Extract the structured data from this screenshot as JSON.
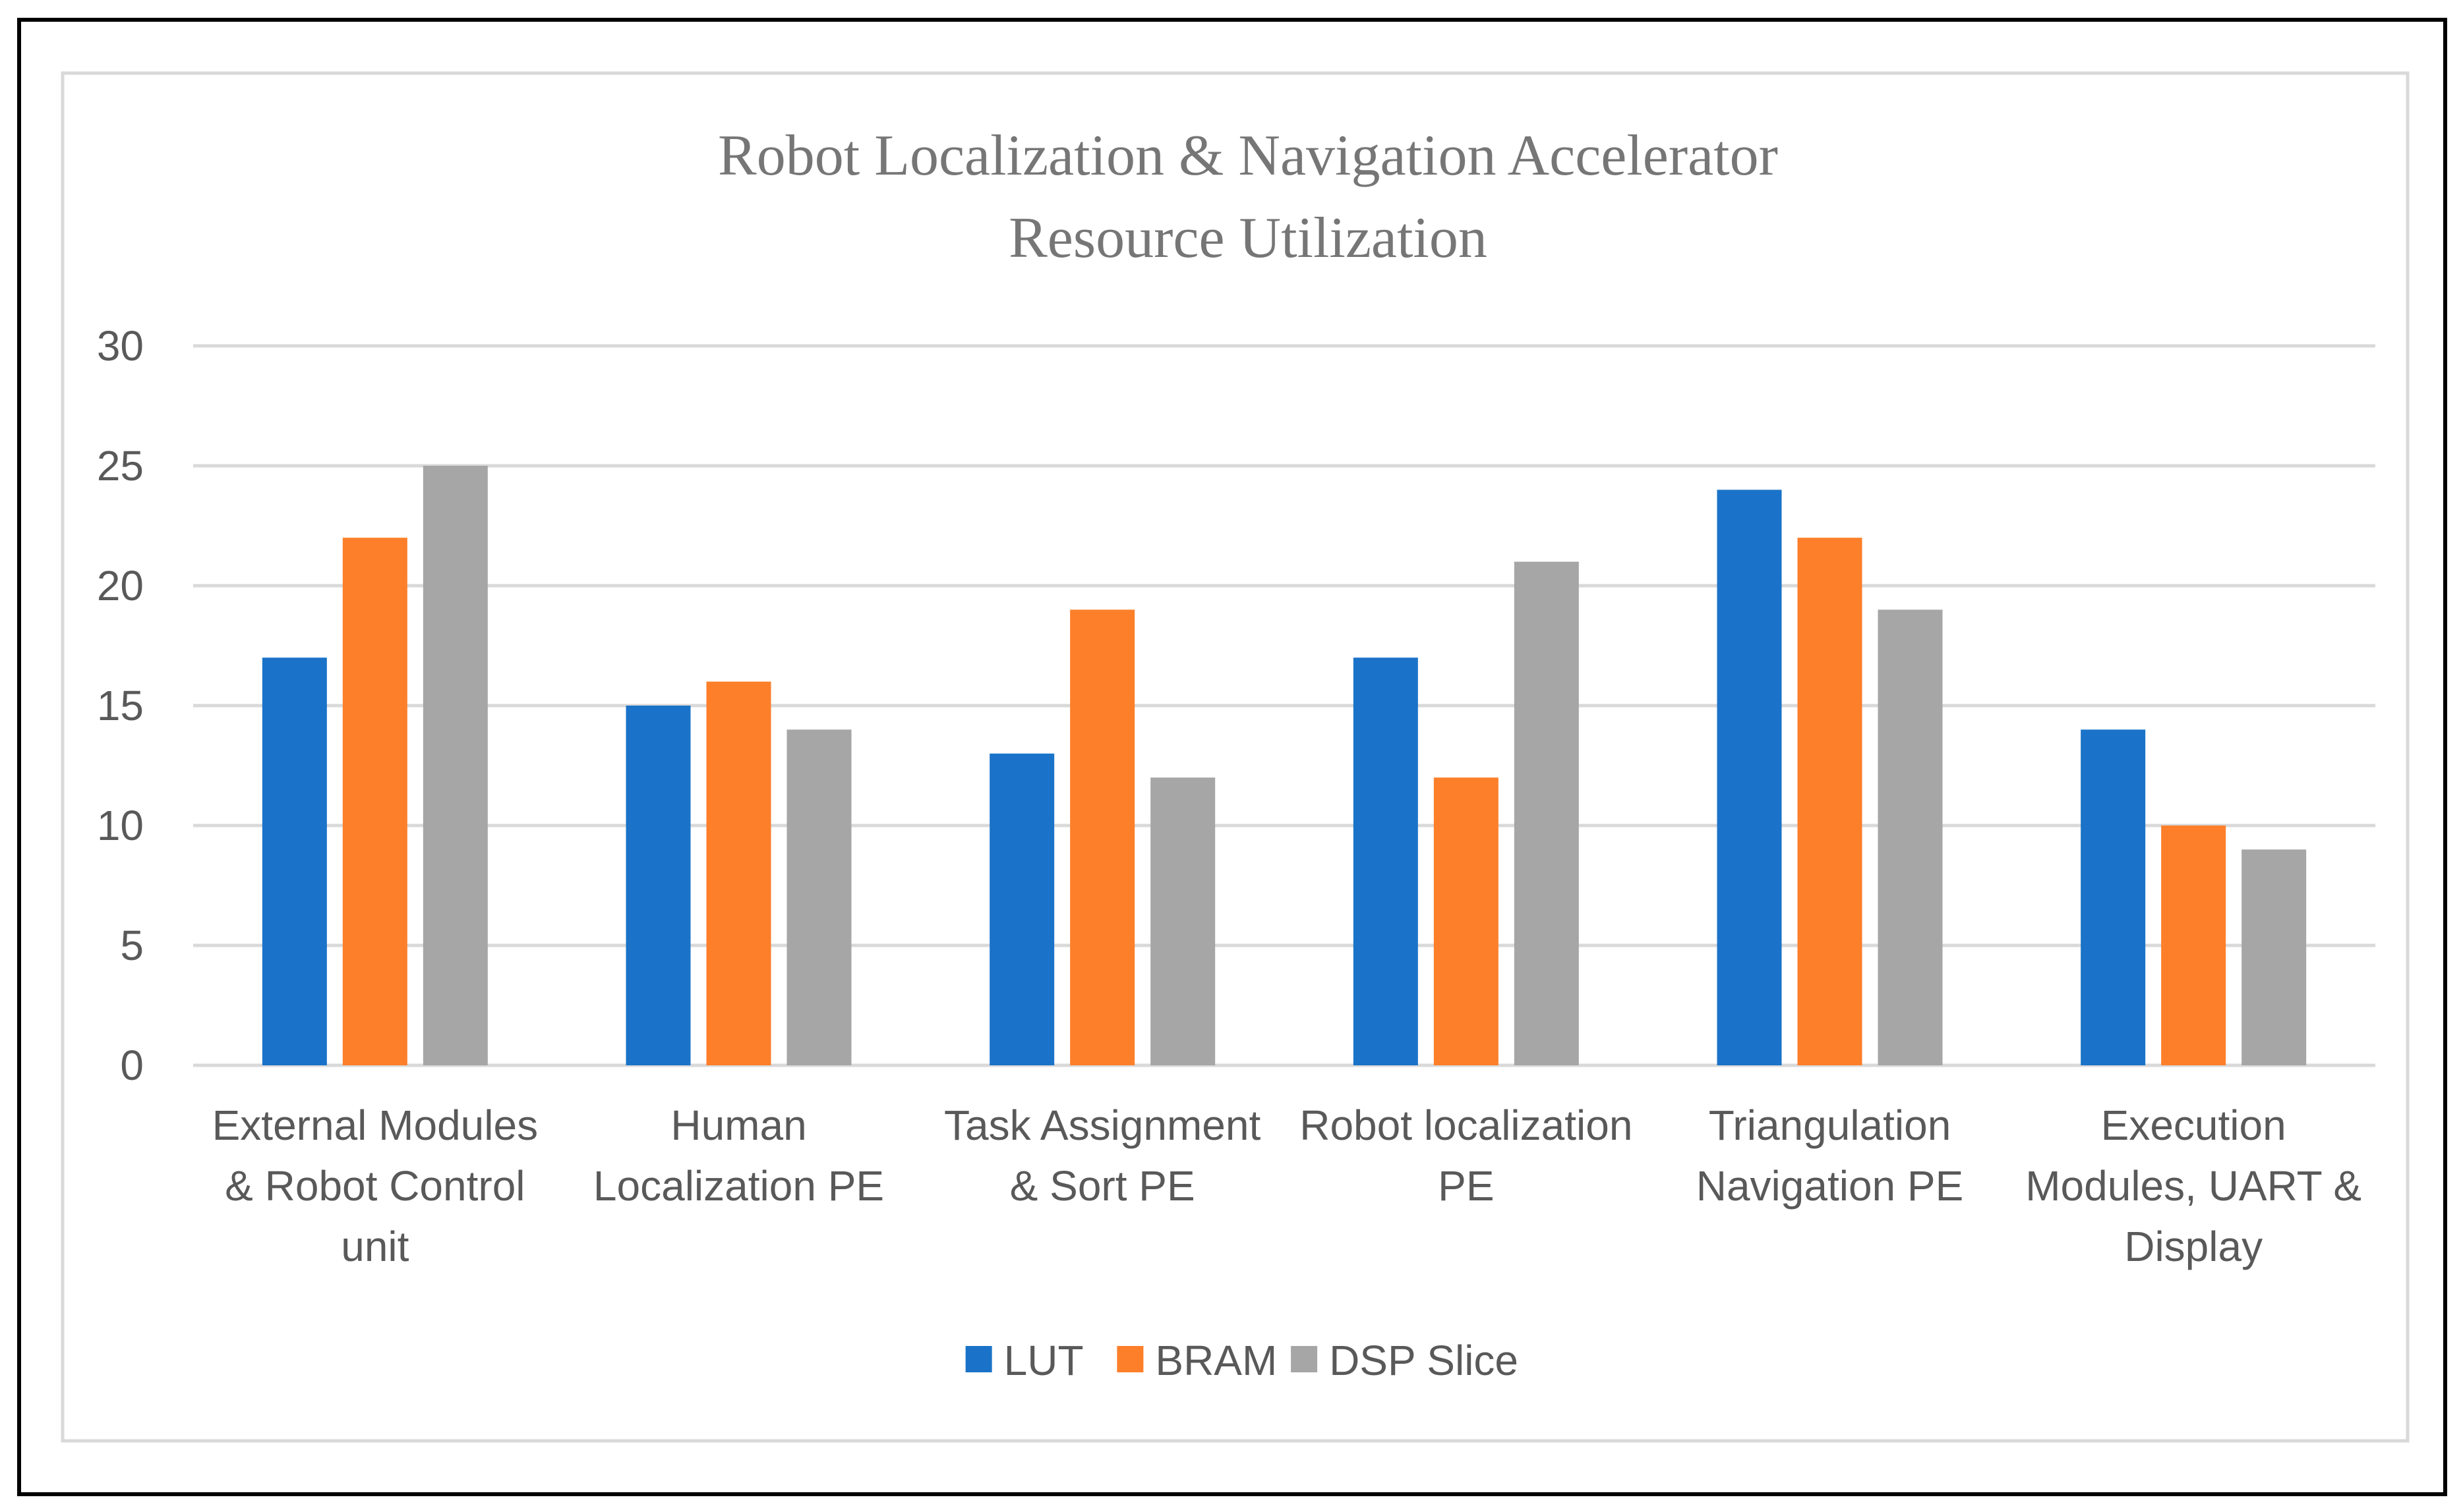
{
  "chart_data": {
    "type": "bar",
    "title": [
      "Robot Localization & Navigation Accelerator",
      "Resource Utilization"
    ],
    "xlabel": "",
    "ylabel": "",
    "ylim": [
      0,
      30
    ],
    "yticks": [
      0,
      5,
      10,
      15,
      20,
      25,
      30
    ],
    "grid": true,
    "legend_position": "bottom",
    "categories": [
      [
        "External Modules",
        "& Robot  Control",
        "unit"
      ],
      [
        "Human",
        "Localization PE"
      ],
      [
        "Task Assignment",
        "& Sort PE"
      ],
      [
        "Robot localization",
        "PE"
      ],
      [
        "Triangulation",
        "Navigation PE"
      ],
      [
        "Execution",
        "Modules, UART &",
        "Display"
      ]
    ],
    "series": [
      {
        "name": "LUT",
        "color": "#1a73c8",
        "values": [
          17,
          15,
          13,
          17,
          24,
          14
        ]
      },
      {
        "name": "BRAM",
        "color": "#fd7f29",
        "values": [
          22,
          16,
          19,
          12,
          22,
          10
        ]
      },
      {
        "name": "DSP Slice",
        "color": "#a6a6a6",
        "values": [
          25,
          14,
          12,
          21,
          19,
          9
        ]
      }
    ]
  }
}
